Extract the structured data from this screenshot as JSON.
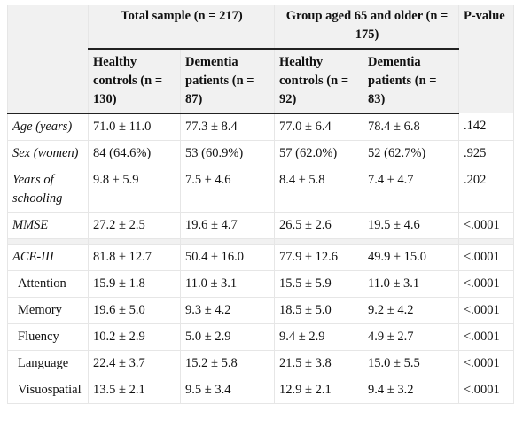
{
  "header": {
    "group1_title": "Total sample (n = 217)",
    "group2_title": "Group aged 65 and older (n = 175)",
    "pvalue_title": "P-value",
    "col1": "Healthy controls (n = 130)",
    "col2": "Dementia patients (n = 87)",
    "col3": "Healthy controls (n = 92)",
    "col4": "Dementia patients (n = 83)"
  },
  "rows": [
    {
      "label": "Age (years)",
      "c1": "71.0 ± 11.0",
      "c2": "77.3 ± 8.4",
      "c3": "77.0 ± 6.4",
      "c4": "78.4 ± 6.8",
      "p": ".142"
    },
    {
      "label": "Sex (women)",
      "c1": "84 (64.6%)",
      "c2": "53 (60.9%)",
      "c3": "57 (62.0%)",
      "c4": "52 (62.7%)",
      "p": ".925"
    },
    {
      "label": "Years of schooling",
      "c1": "9.8 ± 5.9",
      "c2": "7.5 ± 4.6",
      "c3": "8.4 ± 5.8",
      "c4": "7.4 ± 4.7",
      "p": ".202"
    },
    {
      "label": "MMSE",
      "c1": "27.2 ± 2.5",
      "c2": "19.6 ± 4.7",
      "c3": "26.5 ± 2.6",
      "c4": "19.5 ± 4.6",
      "p": "<.0001"
    },
    {
      "label": "ACE-III",
      "c1": "81.8 ± 12.7",
      "c2": "50.4 ± 16.0",
      "c3": "77.9 ± 12.6",
      "c4": "49.9 ± 15.0",
      "p": "<.0001"
    },
    {
      "label": "Attention",
      "c1": "15.9 ± 1.8",
      "c2": "11.0 ± 3.1",
      "c3": "15.5 ± 5.9",
      "c4": "11.0 ± 3.1",
      "p": "<.0001"
    },
    {
      "label": "Memory",
      "c1": "19.6 ± 5.0",
      "c2": "9.3 ± 4.2",
      "c3": "18.5 ± 5.0",
      "c4": "9.2 ± 4.2",
      "p": "<.0001"
    },
    {
      "label": "Fluency",
      "c1": "10.2 ± 2.9",
      "c2": "5.0 ± 2.9",
      "c3": "9.4 ± 2.9",
      "c4": "4.9 ± 2.7",
      "p": "<.0001"
    },
    {
      "label": "Language",
      "c1": "22.4 ± 3.7",
      "c2": "15.2 ± 5.8",
      "c3": "21.5 ± 3.8",
      "c4": "15.0 ± 5.5",
      "p": "<.0001"
    },
    {
      "label": "Visuospatial",
      "c1": "13.5 ± 2.1",
      "c2": "9.5 ± 3.4",
      "c3": "12.9 ± 2.1",
      "c4": "9.4 ± 3.2",
      "p": "<.0001"
    }
  ]
}
